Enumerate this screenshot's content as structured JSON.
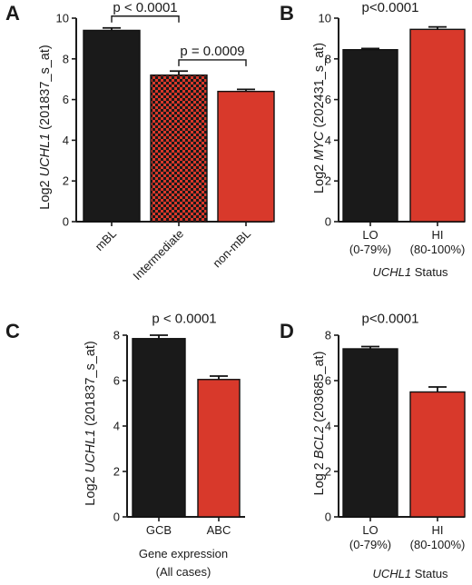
{
  "chart_data": [
    {
      "panel": "A",
      "type": "bar",
      "ylabel_prefix": "Log2 ",
      "ylabel_gene": "UCHL1",
      "ylabel_suffix": " (201837_s_at)",
      "yticks": [
        "0",
        "2",
        "4",
        "6",
        "8",
        "10"
      ],
      "ylim": [
        0,
        10
      ],
      "categories": [
        "mBL",
        "Intermediate",
        "non-mBL"
      ],
      "values": [
        9.4,
        7.2,
        6.4
      ],
      "errors": [
        0.12,
        0.2,
        0.1
      ],
      "colors": [
        "#1a1a1a",
        "checker",
        "#d8392b"
      ],
      "xlabel_line1": "",
      "xlabel_line2": "",
      "annotations": [
        {
          "text": "p < 0.0001",
          "from": 0,
          "to": 1,
          "y": 10.1
        },
        {
          "text": "p = 0.0009",
          "from": 1,
          "to": 2,
          "y": 7.95
        }
      ]
    },
    {
      "panel": "B",
      "type": "bar",
      "ylabel_prefix": "Log2 ",
      "ylabel_gene": "MYC",
      "ylabel_suffix": " (202431_s_at)",
      "yticks": [
        "0",
        "2",
        "4",
        "6",
        "8",
        "10"
      ],
      "ylim": [
        0,
        10
      ],
      "categories": [
        "LO",
        "HI"
      ],
      "subcategories": [
        "(0-79%)",
        "(80-100%)"
      ],
      "values": [
        8.45,
        9.45
      ],
      "errors": [
        0.06,
        0.12
      ],
      "colors": [
        "#1a1a1a",
        "#d8392b"
      ],
      "xlabel_gene": "UCHL1",
      "xlabel_rest": " Status",
      "annotations": [
        {
          "text": "p<0.0001",
          "y": 10.1
        }
      ]
    },
    {
      "panel": "C",
      "type": "bar",
      "ylabel_prefix": "Log2 ",
      "ylabel_gene": "UCHL1",
      "ylabel_suffix": " (201837_s_at)",
      "yticks": [
        "0",
        "2",
        "4",
        "6",
        "8"
      ],
      "ylim": [
        0,
        8
      ],
      "categories": [
        "GCB",
        "ABC"
      ],
      "values": [
        7.85,
        6.05
      ],
      "errors": [
        0.15,
        0.15
      ],
      "colors": [
        "#1a1a1a",
        "#d8392b"
      ],
      "xlabel_line1": "Gene expression",
      "xlabel_line2": "(All cases)",
      "annotations": [
        {
          "text": "p < 0.0001",
          "y": 8.35
        }
      ]
    },
    {
      "panel": "D",
      "type": "bar",
      "ylabel_prefix": "Log 2 ",
      "ylabel_gene": "BCL2",
      "ylabel_suffix": " (203685_at)",
      "yticks": [
        "0",
        "2",
        "4",
        "6",
        "8"
      ],
      "ylim": [
        0,
        8
      ],
      "categories": [
        "LO",
        "HI"
      ],
      "subcategories": [
        "(0-79%)",
        "(80-100%)"
      ],
      "values": [
        7.4,
        5.5
      ],
      "errors": [
        0.1,
        0.22
      ],
      "colors": [
        "#1a1a1a",
        "#d8392b"
      ],
      "xlabel_gene": "UCHL1",
      "xlabel_rest": " Status",
      "annotations": [
        {
          "text": "p<0.0001",
          "y": 8.35
        }
      ]
    }
  ]
}
